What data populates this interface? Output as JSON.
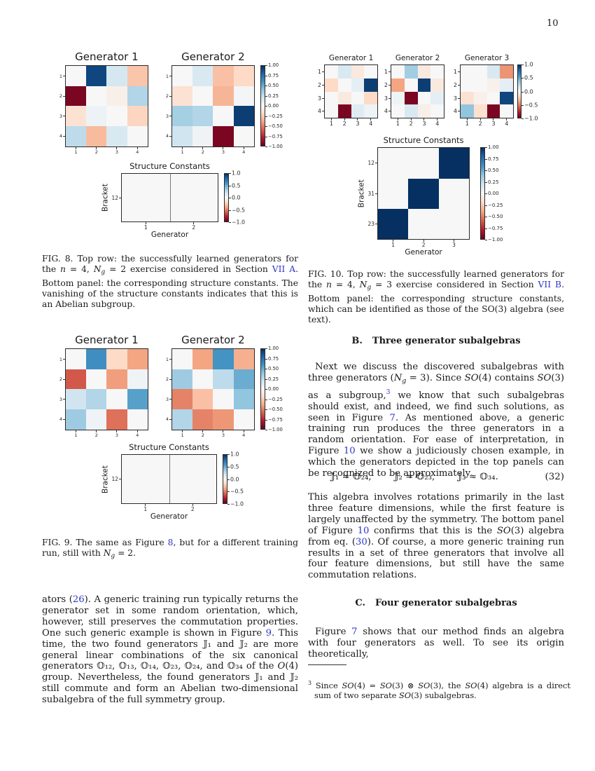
{
  "page": {
    "number": "10"
  },
  "colors": {
    "link": "#2b35c8",
    "text": "#1a1a1a",
    "spine": "#2a2a2a",
    "tick": "#262626"
  },
  "sections": {
    "b": {
      "prefix": "B.",
      "title": "Three generator subalgebras"
    },
    "c": {
      "prefix": "C.",
      "title": "Four generator subalgebras"
    }
  },
  "equation": {
    "terms": [
      "𝕁₁ ≈ 𝕆₂₄,",
      "𝕁₂ ≈ 𝕆₂₃,",
      "𝕁₃ ≈ 𝕆₃₄."
    ],
    "number": "(32)"
  },
  "captions": {
    "fig8": [
      {
        "t": "FIG. 8.  Top row: the successfully learned generators for the "
      },
      {
        "t": "n",
        "i": true
      },
      {
        "t": " = 4, "
      },
      {
        "t": "N",
        "i": true
      },
      {
        "t": "g",
        "i": true,
        "sub": true
      },
      {
        "t": " = 2 exercise considered in Section "
      },
      {
        "t": "VII A",
        "link": true
      },
      {
        "t": ". Bottom panel: the corresponding structure constants. The vanishing of the structure constants indicates that this is an Abelian subgroup."
      }
    ],
    "fig9": [
      {
        "t": "FIG. 9.  The same as Figure "
      },
      {
        "t": "8",
        "link": true
      },
      {
        "t": ", but for a different training run, still with "
      },
      {
        "t": "N",
        "i": true
      },
      {
        "t": "g",
        "i": true,
        "sub": true
      },
      {
        "t": " = 2."
      }
    ],
    "fig10": [
      {
        "t": "FIG. 10.  Top row: the successfully learned generators for the "
      },
      {
        "t": "n",
        "i": true
      },
      {
        "t": " = 4, "
      },
      {
        "t": "N",
        "i": true
      },
      {
        "t": "g",
        "i": true,
        "sub": true
      },
      {
        "t": " = 3 exercise considered in Section "
      },
      {
        "t": "VII B",
        "link": true
      },
      {
        "t": ". Bottom panel: the corresponding structure constants, which can be identified as those of the SO(3) algebra (see text)."
      }
    ]
  },
  "paragraphs": {
    "left": [
      {
        "t": "ators ("
      },
      {
        "t": "26",
        "link": true
      },
      {
        "t": "). A generic training run typically returns the generator set in some random orientation, which, however, still preserves the commutation properties. One such generic example is shown in Figure "
      },
      {
        "t": "9",
        "link": true
      },
      {
        "t": ". This time, the two found generators 𝕁₁ and 𝕁₂ are more general linear combinations of the six canonical generators 𝕆₁₂, 𝕆₁₃, 𝕆₁₄, 𝕆₂₃, 𝕆₂₄, and 𝕆₃₄ of the "
      },
      {
        "t": "O",
        "i": true
      },
      {
        "t": "(4) group. Nevertheless, the found generators 𝕁₁ and 𝕁₂ still commute and form an Abelian two-dimensional subalgebra of the full symmetry group."
      }
    ],
    "b1": [
      {
        "t": "Next we discuss the discovered subalgebras with three generators ("
      },
      {
        "t": "N",
        "i": true
      },
      {
        "t": "g",
        "i": true,
        "sub": true
      },
      {
        "t": " = 3). Since "
      },
      {
        "t": "SO",
        "i": true
      },
      {
        "t": "(4) contains "
      },
      {
        "t": "SO",
        "i": true
      },
      {
        "t": "(3) as a subgroup,"
      },
      {
        "t": "3",
        "link": true,
        "sup": true
      },
      {
        "t": " we know that such subalgebras should exist, and indeed, we find such solutions, as seen in Figure "
      },
      {
        "t": "7",
        "link": true
      },
      {
        "t": ". As mentioned above, a generic training run produces the three generators in a random orientation. For ease of interpretation, in Figure "
      },
      {
        "t": "10",
        "link": true
      },
      {
        "t": " we show a judiciously chosen example, in which the generators depicted in the top panels can be recognized to be approximately"
      }
    ],
    "b2": [
      {
        "t": "This algebra involves rotations primarily in the last three feature dimensions, while the first feature is largely unaffected by the symmetry. The bottom panel of Figure "
      },
      {
        "t": "10",
        "link": true
      },
      {
        "t": " confirms that this is the "
      },
      {
        "t": "SO",
        "i": true
      },
      {
        "t": "(3) algebra from eq. ("
      },
      {
        "t": "30",
        "link": true
      },
      {
        "t": "). Of course, a more generic training run results in a set of three generators that involve all four feature dimensions, but still have the same commutation relations."
      }
    ],
    "c1": [
      {
        "t": "Figure "
      },
      {
        "t": "7",
        "link": true
      },
      {
        "t": " shows that our method finds an algebra with four generators as well. To see its origin theoretically,"
      }
    ],
    "footnote": [
      {
        "t": "3",
        "sup": true
      },
      {
        "t": " Since "
      },
      {
        "t": "SO",
        "i": true
      },
      {
        "t": "(4) = "
      },
      {
        "t": "SO",
        "i": true
      },
      {
        "t": "(3) ⊗ "
      },
      {
        "t": "SO",
        "i": true
      },
      {
        "t": "(3), the "
      },
      {
        "t": "SO",
        "i": true
      },
      {
        "t": "(4) algebra is a direct sum of two separate "
      },
      {
        "t": "SO",
        "i": true
      },
      {
        "t": "(3) subalgebras."
      }
    ]
  },
  "chart_data": [
    {
      "id": "figure-8",
      "type": "heatmap",
      "cmap": "RdBu",
      "vmin": -1,
      "vmax": 1,
      "panels": [
        {
          "title": "Generator 1",
          "rows": [
            "1",
            "2",
            "3",
            "4"
          ],
          "cols": [
            "1",
            "2",
            "3",
            "4"
          ],
          "values": [
            [
              0,
              0.92,
              0.18,
              -0.28
            ],
            [
              -0.95,
              0,
              -0.06,
              0.3
            ],
            [
              -0.15,
              0.06,
              0,
              -0.22
            ],
            [
              0.26,
              -0.32,
              0.16,
              0
            ]
          ]
        },
        {
          "title": "Generator 2",
          "rows": [
            "1",
            "2",
            "3",
            "4"
          ],
          "cols": [
            "1",
            "2",
            "3",
            "4"
          ],
          "values": [
            [
              0,
              0.16,
              -0.3,
              -0.2
            ],
            [
              -0.15,
              0,
              -0.34,
              0.02
            ],
            [
              0.34,
              0.3,
              0,
              0.95
            ],
            [
              0.2,
              0.04,
              -0.95,
              0
            ]
          ]
        },
        {
          "title": "Structure Constants",
          "ylabel": "Bracket",
          "xlabel": "Generator",
          "divider": true,
          "rows": [
            "12"
          ],
          "cols": [
            "1",
            "2"
          ],
          "values": [
            [
              0,
              0
            ]
          ]
        }
      ],
      "colorbars": [
        {
          "ticks": [
            "1.00",
            "0.75",
            "0.50",
            "0.25",
            "0.00",
            "−0.25",
            "−0.50",
            "−0.75",
            "−1.00"
          ]
        },
        {
          "ticks": [
            "1.0",
            "0.5",
            "0.0",
            "−0.5",
            "−1.0"
          ]
        }
      ]
    },
    {
      "id": "figure-9",
      "type": "heatmap",
      "cmap": "RdBu",
      "vmin": -1,
      "vmax": 1,
      "panels": [
        {
          "title": "Generator 1",
          "rows": [
            "1",
            "2",
            "3",
            "4"
          ],
          "cols": [
            "1",
            "2",
            "3",
            "4"
          ],
          "values": [
            [
              0,
              0.62,
              -0.2,
              -0.4
            ],
            [
              -0.62,
              0,
              -0.42,
              0.04
            ],
            [
              0.2,
              0.3,
              0,
              0.55
            ],
            [
              0.36,
              0.04,
              -0.55,
              0
            ]
          ]
        },
        {
          "title": "Generator 2",
          "rows": [
            "1",
            "2",
            "3",
            "4"
          ],
          "cols": [
            "1",
            "2",
            "3",
            "4"
          ],
          "values": [
            [
              0,
              -0.4,
              0.6,
              -0.36
            ],
            [
              0.36,
              0,
              0.26,
              0.5
            ],
            [
              -0.5,
              -0.3,
              0,
              0.4
            ],
            [
              0.3,
              -0.5,
              -0.44,
              0
            ]
          ]
        },
        {
          "title": "Structure Constants",
          "ylabel": "Bracket",
          "xlabel": "Generator",
          "divider": true,
          "rows": [
            "12"
          ],
          "cols": [
            "1",
            "2"
          ],
          "values": [
            [
              0,
              0
            ]
          ]
        }
      ],
      "colorbars": [
        {
          "ticks": [
            "1.00",
            "0.75",
            "0.50",
            "0.25",
            "0.00",
            "−0.25",
            "−0.50",
            "−0.75",
            "−1.00"
          ]
        },
        {
          "ticks": [
            "1.0",
            "0.5",
            "0.0",
            "−0.5",
            "−1.0"
          ]
        }
      ]
    },
    {
      "id": "figure-10",
      "type": "heatmap",
      "cmap": "RdBu",
      "vmin": -1,
      "vmax": 1,
      "panels": [
        {
          "title": "Generator 1",
          "rows": [
            "1",
            "2",
            "3",
            "4"
          ],
          "cols": [
            "1",
            "2",
            "3",
            "4"
          ],
          "values": [
            [
              0,
              0.16,
              -0.1,
              0
            ],
            [
              -0.2,
              0,
              0.1,
              0.95
            ],
            [
              0,
              -0.1,
              0,
              -0.2
            ],
            [
              0,
              -0.95,
              0.12,
              0.05
            ]
          ]
        },
        {
          "title": "Generator 2",
          "rows": [
            "1",
            "2",
            "3",
            "4"
          ],
          "cols": [
            "1",
            "2",
            "3",
            "4"
          ],
          "values": [
            [
              0,
              0.35,
              -0.1,
              0
            ],
            [
              -0.4,
              0,
              0.95,
              -0.1
            ],
            [
              0.05,
              -0.95,
              0,
              0.1
            ],
            [
              0,
              0.16,
              -0.06,
              0
            ]
          ]
        },
        {
          "title": "Generator 3",
          "rows": [
            "1",
            "2",
            "3",
            "4"
          ],
          "cols": [
            "1",
            "2",
            "3",
            "4"
          ],
          "values": [
            [
              0,
              0,
              0.16,
              -0.45
            ],
            [
              0,
              0,
              -0.05,
              0.1
            ],
            [
              -0.15,
              -0.05,
              0,
              0.92
            ],
            [
              0.4,
              -0.16,
              -0.95,
              0
            ]
          ]
        },
        {
          "title": "Structure Constants",
          "ylabel": "Bracket",
          "xlabel": "Generator",
          "rows": [
            "12",
            "31",
            "23"
          ],
          "cols": [
            "1",
            "2",
            "3"
          ],
          "values": [
            [
              0,
              0,
              1
            ],
            [
              0,
              1,
              0
            ],
            [
              1,
              0,
              0
            ]
          ]
        }
      ],
      "colorbars": [
        {
          "ticks": [
            "1.0",
            "0.5",
            "0.0",
            "−0.5",
            "−1.0"
          ]
        },
        {
          "ticks": [
            "1.00",
            "0.75",
            "0.50",
            "0.25",
            "0.00",
            "−0.25",
            "−0.50",
            "−0.75",
            "−1.00"
          ]
        }
      ]
    }
  ]
}
